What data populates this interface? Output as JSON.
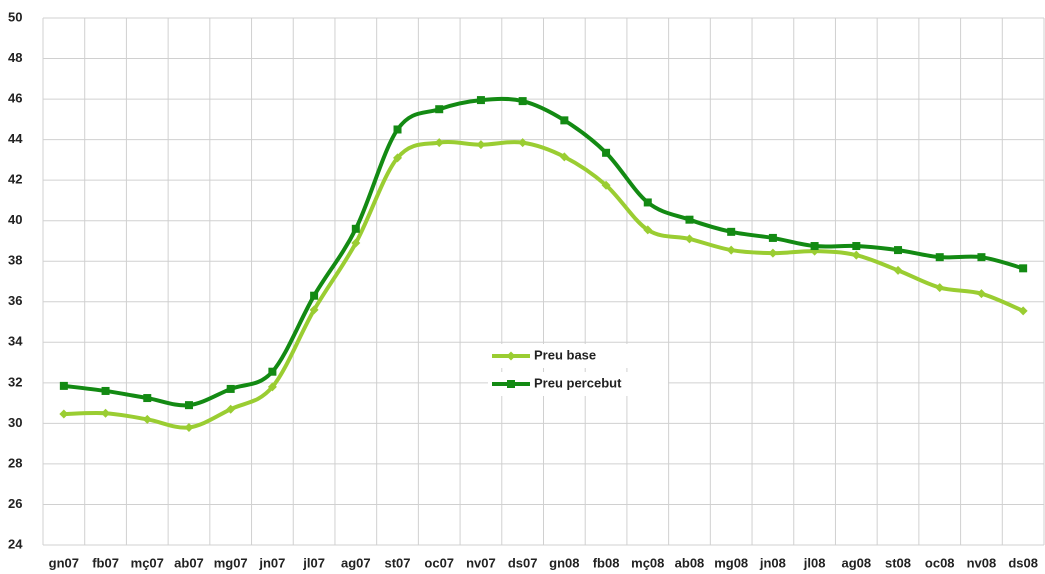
{
  "chart_data": {
    "type": "line",
    "categories": [
      "gn07",
      "fb07",
      "mç07",
      "ab07",
      "mg07",
      "jn07",
      "jl07",
      "ag07",
      "st07",
      "oc07",
      "nv07",
      "ds07",
      "gn08",
      "fb08",
      "mç08",
      "ab08",
      "mg08",
      "jn08",
      "jl08",
      "ag08",
      "st08",
      "oc08",
      "nv08",
      "ds08"
    ],
    "series": [
      {
        "name": "Preu base",
        "color": "#9acd32",
        "marker": "diamond",
        "values": [
          30.46,
          30.5,
          30.2,
          29.8,
          30.7,
          31.8,
          35.6,
          38.9,
          43.1,
          43.85,
          43.75,
          43.85,
          43.15,
          41.75,
          39.55,
          39.1,
          38.55,
          38.4,
          38.5,
          38.3,
          37.55,
          36.7,
          36.4,
          35.55
        ]
      },
      {
        "name": "Preu percebut",
        "color": "#138a13",
        "marker": "square",
        "values": [
          31.85,
          31.6,
          31.25,
          30.9,
          31.7,
          32.55,
          36.3,
          39.6,
          44.5,
          45.5,
          45.95,
          45.9,
          44.95,
          43.35,
          40.9,
          40.05,
          39.45,
          39.15,
          38.75,
          38.75,
          38.55,
          38.2,
          38.2,
          37.65
        ]
      }
    ],
    "ylim": [
      24,
      50
    ],
    "yticks": [
      24,
      26,
      28,
      30,
      32,
      34,
      36,
      38,
      40,
      42,
      44,
      46,
      48,
      50
    ],
    "grid": true,
    "legend": "center"
  }
}
